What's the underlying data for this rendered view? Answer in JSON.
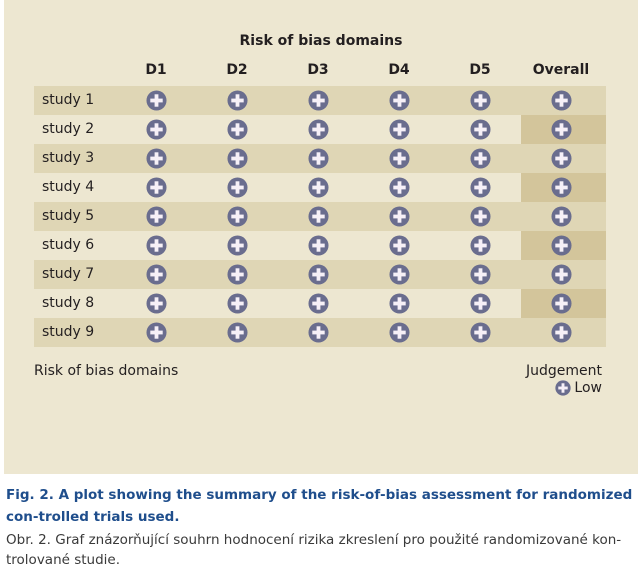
{
  "diagram": {
    "title": "Risk of bias domains",
    "columns": [
      "D1",
      "D2",
      "D3",
      "D4",
      "D5",
      "Overall"
    ],
    "rows": [
      {
        "label": "study 1",
        "judgements": [
          "low",
          "low",
          "low",
          "low",
          "low",
          "low"
        ]
      },
      {
        "label": "study 2",
        "judgements": [
          "low",
          "low",
          "low",
          "low",
          "low",
          "low"
        ]
      },
      {
        "label": "study 3",
        "judgements": [
          "low",
          "low",
          "low",
          "low",
          "low",
          "low"
        ]
      },
      {
        "label": "study 4",
        "judgements": [
          "low",
          "low",
          "low",
          "low",
          "low",
          "low"
        ]
      },
      {
        "label": "study 5",
        "judgements": [
          "low",
          "low",
          "low",
          "low",
          "low",
          "low"
        ]
      },
      {
        "label": "study 6",
        "judgements": [
          "low",
          "low",
          "low",
          "low",
          "low",
          "low"
        ]
      },
      {
        "label": "study 7",
        "judgements": [
          "low",
          "low",
          "low",
          "low",
          "low",
          "low"
        ]
      },
      {
        "label": "study 8",
        "judgements": [
          "low",
          "low",
          "low",
          "low",
          "low",
          "low"
        ]
      },
      {
        "label": "study 9",
        "judgements": [
          "low",
          "low",
          "low",
          "low",
          "low",
          "low"
        ]
      }
    ],
    "footer_label": "Risk of bias domains",
    "legend": {
      "title": "Judgement",
      "items": [
        {
          "symbol": "plus-icon",
          "label": "Low"
        }
      ]
    }
  },
  "colors": {
    "panel": "#ede7d1",
    "row_shaded": "#dfd6b5",
    "overall_column": "#d3c59b",
    "symbol_fill": "#6a6d8e",
    "symbol_plus": "#f6f0f7",
    "caption_title": "#1f4e8c"
  },
  "caption": {
    "title": "Fig. 2. A plot showing the summary of the risk-of-bias assessment for randomized con-trolled trials used.",
    "text": "Obr. 2. Graf znázorňující souhrn hodnocení rizika zkreslení pro použité randomizované kon-trolované studie."
  }
}
